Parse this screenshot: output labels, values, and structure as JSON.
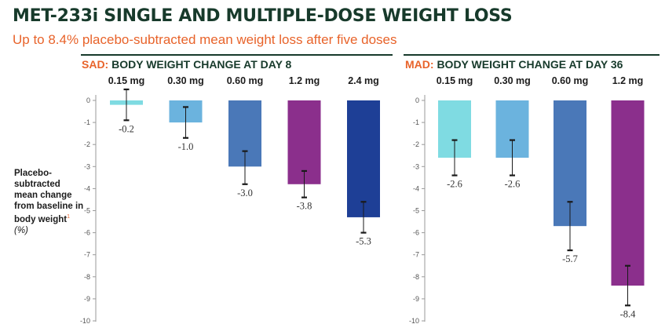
{
  "header": {
    "title": "MET-233i SINGLE AND MULTIPLE-DOSE WEIGHT LOSS",
    "subtitle": "Up to 8.4% placebo-subtracted mean weight loss after five doses"
  },
  "y_axis_label": {
    "text": "Placebo-subtracted mean change from baseline in body weight",
    "superscript": "1",
    "unit": "(%)"
  },
  "colors": {
    "title": "#173a2b",
    "accent": "#e8632a"
  },
  "chart_data": [
    {
      "type": "bar",
      "panel_tag": "SAD:",
      "panel_title": "BODY WEIGHT CHANGE AT DAY 8",
      "categories": [
        "0.15 mg",
        "0.30 mg",
        "0.60 mg",
        "1.2 mg",
        "2.4 mg"
      ],
      "values": [
        -0.2,
        -1.0,
        -3.0,
        -3.8,
        -5.3
      ],
      "value_labels": [
        "-0.2",
        "-1.0",
        "-3.0",
        "-3.8",
        "-5.3"
      ],
      "error_low": [
        -0.9,
        -1.7,
        -3.8,
        -4.4,
        -6.0
      ],
      "error_high": [
        0.5,
        -0.3,
        -2.3,
        -3.2,
        -4.6
      ],
      "colors": [
        "#7fdbe2",
        "#6bb3de",
        "#4a78b8",
        "#8b2f8c",
        "#1e3f96"
      ],
      "ylim": [
        -10,
        0
      ],
      "yticks": [
        0,
        -1,
        -2,
        -3,
        -4,
        -5,
        -6,
        -7,
        -8,
        -9,
        -10
      ],
      "grid": false
    },
    {
      "type": "bar",
      "panel_tag": "MAD:",
      "panel_title": "BODY WEIGHT CHANGE AT DAY 36",
      "categories": [
        "0.15 mg",
        "0.30 mg",
        "0.60 mg",
        "1.2 mg"
      ],
      "values": [
        -2.6,
        -2.6,
        -5.7,
        -8.4
      ],
      "value_labels": [
        "-2.6",
        "-2.6",
        "-5.7",
        "-8.4"
      ],
      "error_low": [
        -3.4,
        -3.4,
        -6.8,
        -9.3
      ],
      "error_high": [
        -1.8,
        -1.8,
        -4.6,
        -7.5
      ],
      "colors": [
        "#7fdbe2",
        "#6bb3de",
        "#4a78b8",
        "#8b2f8c"
      ],
      "ylim": [
        -10,
        0
      ],
      "yticks": [
        0,
        -1,
        -2,
        -3,
        -4,
        -5,
        -6,
        -7,
        -8,
        -9,
        -10
      ],
      "grid": false
    }
  ]
}
